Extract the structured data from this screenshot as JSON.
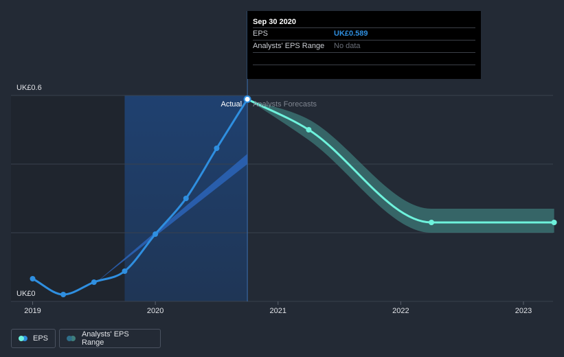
{
  "chart_data": {
    "type": "line",
    "title": "",
    "currency_unit": "UK£",
    "y_ticks": [
      {
        "value": 0,
        "label": "UK£0"
      },
      {
        "value": 0.6,
        "label": "UK£0.6"
      }
    ],
    "ylim": [
      0,
      0.6
    ],
    "xlim": [
      2019.0,
      2023.25
    ],
    "x_ticks": [
      {
        "value": 2019,
        "label": "2019"
      },
      {
        "value": 2020,
        "label": "2020"
      },
      {
        "value": 2021,
        "label": "2021"
      },
      {
        "value": 2022,
        "label": "2022"
      },
      {
        "value": 2023,
        "label": "2023"
      }
    ],
    "gridlines": [
      0.2,
      0.4,
      0.6
    ],
    "divider_x": 2020.75,
    "past_shade_start_x": 2019.75,
    "section_labels": {
      "actual": "Actual",
      "forecast": "Analysts Forecasts"
    },
    "colors": {
      "eps": "#2f8fe0",
      "forecast": "#6ef2dc",
      "range": "#3f7f7d",
      "past_shade": "#1f4a86",
      "background": "#232a35"
    },
    "series": [
      {
        "name": "EPS",
        "kind": "actual",
        "points": [
          [
            2019.0,
            0.066
          ],
          [
            2019.25,
            0.02
          ],
          [
            2019.5,
            0.056
          ],
          [
            2019.75,
            0.088
          ],
          [
            2020.0,
            0.196
          ],
          [
            2020.25,
            0.3
          ],
          [
            2020.5,
            0.446
          ],
          [
            2020.75,
            0.589
          ]
        ]
      },
      {
        "name": "EPS Forecast",
        "kind": "forecast",
        "points": [
          [
            2020.75,
            0.589
          ],
          [
            2021.25,
            0.5
          ],
          [
            2022.25,
            0.23
          ],
          [
            2023.25,
            0.23
          ]
        ]
      },
      {
        "name": "Analysts' EPS Range",
        "kind": "range",
        "upper": [
          [
            2020.75,
            0.589
          ],
          [
            2021.25,
            0.53
          ],
          [
            2022.25,
            0.27
          ],
          [
            2023.25,
            0.27
          ]
        ],
        "lower": [
          [
            2020.75,
            0.589
          ],
          [
            2021.25,
            0.47
          ],
          [
            2022.25,
            0.2
          ],
          [
            2023.25,
            0.2
          ]
        ]
      }
    ],
    "trend_wedge": {
      "start": [
        2019.5,
        0.05
      ],
      "upper_end": [
        2020.75,
        0.43
      ],
      "lower_end": [
        2020.75,
        0.4
      ]
    },
    "tooltip": {
      "date": "Sep 30 2020",
      "rows": [
        {
          "label": "EPS",
          "value": "UK£0.589"
        },
        {
          "label": "Analysts' EPS Range",
          "value": "No data"
        }
      ]
    },
    "legend": [
      {
        "label": "EPS"
      },
      {
        "label": "Analysts' EPS Range"
      }
    ]
  }
}
